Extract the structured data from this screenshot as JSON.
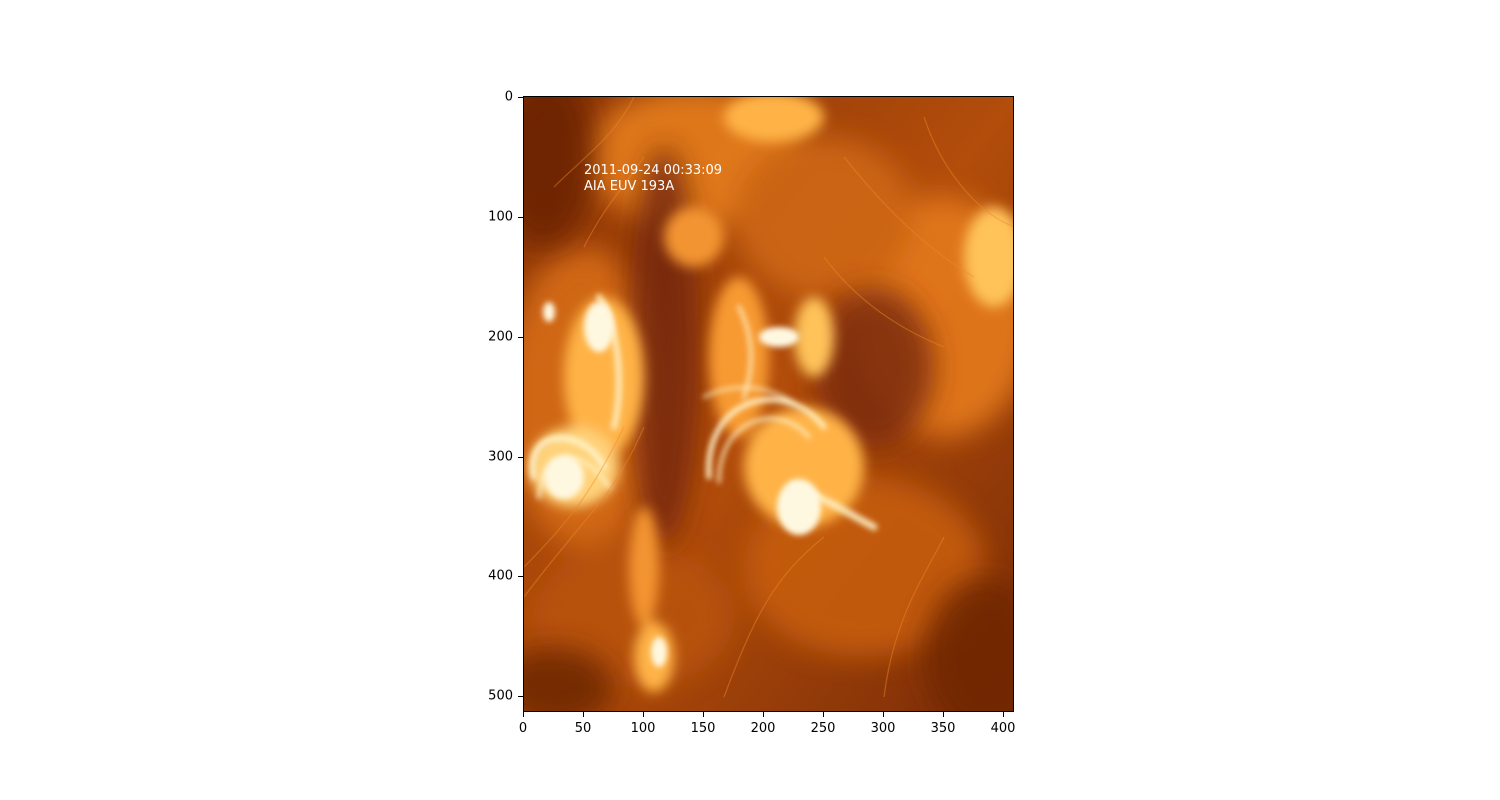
{
  "figure": {
    "image": "solar-corona-euv",
    "annotation": {
      "timestamp": "2011-09-24 00:33:09",
      "instrument": "AIA EUV 193A"
    },
    "x_axis": {
      "range": [
        0,
        410
      ],
      "ticks": [
        "0",
        "50",
        "100",
        "150",
        "200",
        "250",
        "300",
        "350",
        "400"
      ]
    },
    "y_axis": {
      "range": [
        0,
        514
      ],
      "inverted": true,
      "ticks": [
        "0",
        "100",
        "200",
        "300",
        "400",
        "500"
      ]
    },
    "colormap": {
      "dark": "#6b2406",
      "mid": "#d2640f",
      "bright": "#ffb347",
      "saturated": "#fff6d8"
    }
  }
}
